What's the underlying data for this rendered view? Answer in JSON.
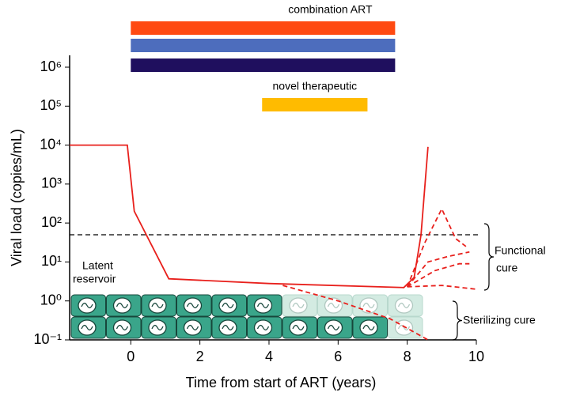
{
  "chart_data": {
    "type": "line",
    "xlabel": "Time from start of ART (years)",
    "ylabel": "Viral load (copies/mL)",
    "ylog": true,
    "xlim": [
      -1.77,
      10
    ],
    "xticks": [
      0,
      2,
      4,
      6,
      8,
      10
    ],
    "ylim": [
      0.1,
      1000000
    ],
    "yticks": [
      {
        "value": 0.1,
        "label": "10⁻¹"
      },
      {
        "value": 1,
        "label": "10⁰"
      },
      {
        "value": 10,
        "label": "10¹"
      },
      {
        "value": 100,
        "label": "10²"
      },
      {
        "value": 1000,
        "label": "10³"
      },
      {
        "value": 10000,
        "label": "10⁴"
      },
      {
        "value": 100000,
        "label": "10⁵"
      },
      {
        "value": 1000000,
        "label": "10⁶"
      }
    ],
    "threshold": {
      "value": 50,
      "color": "#000000"
    },
    "series": [
      {
        "color": "#e8201c",
        "dashed": false,
        "x": [
          -1.77,
          -0.1,
          0.1,
          1.1,
          4,
          7.9,
          8.2,
          8.4,
          8.6
        ],
        "values": [
          10000,
          10000,
          200,
          3.7,
          2.8,
          2.2,
          4,
          50,
          9000
        ]
      },
      {
        "color": "#e8201c",
        "dashed": true,
        "x": [
          8.0,
          8.5,
          9.0,
          9.4,
          9.7
        ],
        "values": [
          2.3,
          30,
          230,
          40,
          25
        ]
      },
      {
        "color": "#e8201c",
        "dashed": true,
        "x": [
          8.0,
          8.6,
          9.2,
          9.8
        ],
        "values": [
          2.3,
          10,
          14,
          18
        ]
      },
      {
        "color": "#e8201c",
        "dashed": true,
        "x": [
          8.0,
          8.8,
          9.5,
          9.8
        ],
        "values": [
          2.3,
          6,
          9,
          9
        ]
      },
      {
        "color": "#e8201c",
        "dashed": true,
        "x": [
          8.0,
          9.0,
          10
        ],
        "values": [
          2.3,
          2.5,
          2.0
        ]
      },
      {
        "color": "#e8201c",
        "dashed": true,
        "x": [
          4.4,
          6,
          7.5,
          8.6
        ],
        "values": [
          2.5,
          1.0,
          0.35,
          0.1
        ]
      }
    ],
    "therapies": [
      {
        "label": "combination ART",
        "bars": [
          {
            "color": "#ff4a12",
            "start": 0,
            "end": 7.65
          },
          {
            "color": "#4d6dbd",
            "start": 0,
            "end": 7.65
          },
          {
            "color": "#1f0f5e",
            "start": 0,
            "end": 7.65
          }
        ]
      },
      {
        "label": "novel therapeutic",
        "bars": [
          {
            "color": "#ffbb00",
            "start": 3.8,
            "end": 6.85
          }
        ]
      }
    ],
    "reservoir": {
      "label": [
        "Latent",
        "reservoir"
      ],
      "columns": 10,
      "active": [
        6,
        9
      ]
    },
    "outcomes": [
      {
        "label": [
          "Functional",
          "cure"
        ]
      },
      {
        "label": [
          "Sterilizing cure"
        ]
      }
    ]
  }
}
